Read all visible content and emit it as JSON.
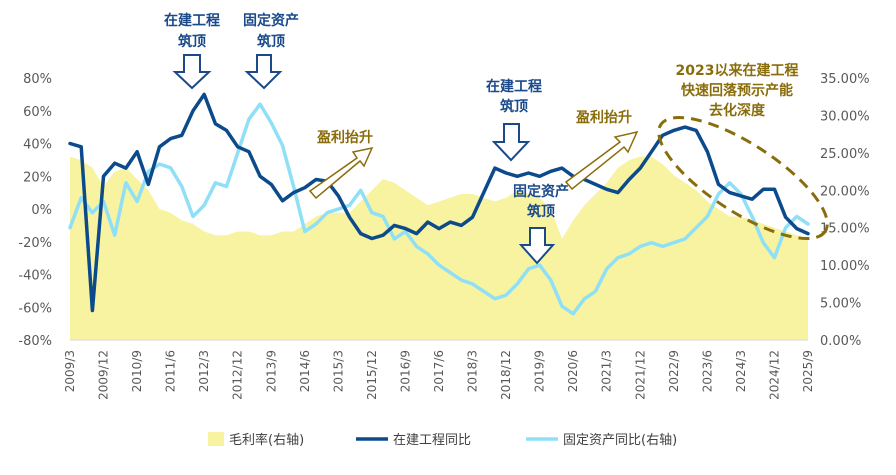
{
  "chart_data": {
    "type": "line",
    "title": "",
    "xlabel": "",
    "ylabel_left": "",
    "ylabel_right": "",
    "ylim_left": [
      -80,
      80
    ],
    "ylim_right": [
      0,
      35
    ],
    "x": [
      "2009/3",
      "2009/6",
      "2009/9",
      "2009/12",
      "2010/3",
      "2010/6",
      "2010/9",
      "2010/12",
      "2011/3",
      "2011/6",
      "2011/9",
      "2011/12",
      "2012/3",
      "2012/6",
      "2012/9",
      "2012/12",
      "2013/3",
      "2013/6",
      "2013/9",
      "2013/12",
      "2014/3",
      "2014/6",
      "2014/9",
      "2014/12",
      "2015/3",
      "2015/6",
      "2015/9",
      "2015/12",
      "2016/3",
      "2016/6",
      "2016/9",
      "2016/12",
      "2017/3",
      "2017/6",
      "2017/9",
      "2017/12",
      "2018/3",
      "2018/6",
      "2018/9",
      "2018/12",
      "2019/3",
      "2019/6",
      "2019/9",
      "2019/12",
      "2020/3",
      "2020/6",
      "2020/9",
      "2020/12",
      "2021/3",
      "2021/6",
      "2021/9",
      "2021/12",
      "2022/3",
      "2022/6",
      "2022/9",
      "2022/12",
      "2023/3",
      "2023/6",
      "2023/9",
      "2023/12",
      "2024/3",
      "2024/6",
      "2024/9",
      "2024/12",
      "2025/3",
      "2025/6",
      "2025/9"
    ],
    "x_tick_labels": [
      "2009/3",
      "2009/12",
      "2010/9",
      "2011/6",
      "2012/3",
      "2012/12",
      "2013/9",
      "2014/6",
      "2015/3",
      "2015/12",
      "2016/9",
      "2017/6",
      "2018/3",
      "2018/12",
      "2019/9",
      "2020/6",
      "2021/3",
      "2021/12",
      "2022/9",
      "2023/6",
      "2024/3",
      "2024/12",
      "2025/9"
    ],
    "left_ticks": [
      "80%",
      "60%",
      "40%",
      "20%",
      "0%",
      "-20%",
      "-40%",
      "-60%",
      "-80%"
    ],
    "right_ticks": [
      "35.00%",
      "30.00%",
      "25.00%",
      "20.00%",
      "15.00%",
      "10.00%",
      "5.00%",
      "0.00%"
    ],
    "series": [
      {
        "name": "毛利率(右轴)",
        "axis": "right",
        "kind": "area",
        "color": "#f7f3a0",
        "values": [
          24.5,
          24.0,
          23.0,
          20.5,
          22.5,
          23.0,
          21.5,
          20.0,
          17.5,
          17.0,
          16.0,
          15.5,
          14.5,
          14.0,
          14.0,
          14.5,
          14.5,
          14.0,
          14.0,
          14.5,
          14.5,
          15.5,
          16.5,
          17.0,
          17.0,
          17.0,
          18.5,
          20.0,
          21.5,
          21.0,
          20.0,
          19.0,
          18.0,
          18.5,
          19.0,
          19.5,
          19.5,
          19.0,
          18.5,
          19.0,
          20.0,
          19.5,
          19.0,
          17.5,
          13.5,
          16.0,
          18.0,
          19.5,
          21.0,
          23.0,
          24.0,
          24.5,
          24.5,
          23.5,
          22.0,
          21.0,
          20.0,
          18.5,
          17.5,
          16.5,
          16.5,
          16.0,
          15.5,
          15.0,
          14.5,
          14.0,
          13.5
        ]
      },
      {
        "name": "在建工程同比",
        "axis": "left",
        "kind": "line",
        "color": "#0b4a8b",
        "values": [
          40,
          38,
          -62,
          20,
          28,
          25,
          35,
          15,
          38,
          43,
          45,
          60,
          70,
          52,
          48,
          38,
          35,
          20,
          15,
          5,
          10,
          13,
          18,
          17,
          8,
          -5,
          -15,
          -18,
          -16,
          -10,
          -12,
          -15,
          -8,
          -12,
          -8,
          -10,
          -5,
          10,
          25,
          22,
          20,
          22,
          20,
          23,
          25,
          20,
          18,
          15,
          12,
          10,
          18,
          25,
          35,
          45,
          48,
          50,
          48,
          35,
          15,
          10,
          8,
          6,
          12,
          12,
          -5,
          -12,
          -15
        ]
      },
      {
        "name": "固定资产同比(右轴)",
        "axis": "right",
        "kind": "line",
        "color": "#8fe0f7",
        "values": [
          15.0,
          19.0,
          17.0,
          18.5,
          14.0,
          21.0,
          18.5,
          22.5,
          23.5,
          23.0,
          20.5,
          16.5,
          18.0,
          21.0,
          20.5,
          25.0,
          29.5,
          31.5,
          29.0,
          26.0,
          20.5,
          14.5,
          15.5,
          17.0,
          17.5,
          18.0,
          20.0,
          17.0,
          16.5,
          13.5,
          14.5,
          12.5,
          11.5,
          10.0,
          9.0,
          8.0,
          7.5,
          6.5,
          5.5,
          6.0,
          7.5,
          9.5,
          10.0,
          8.0,
          4.5,
          3.5,
          5.5,
          6.5,
          9.5,
          11.0,
          11.5,
          12.5,
          13.0,
          12.5,
          13.0,
          13.5,
          15.0,
          16.5,
          19.5,
          21.0,
          19.5,
          16.5,
          13.0,
          11.0,
          15.0,
          16.5,
          15.5
        ]
      }
    ],
    "annotations": {
      "peak1": "在建工程筑顶",
      "peak2": "固定资产筑顶",
      "profit1": "盈利抬升",
      "peak3": "在建工程筑顶",
      "peak4": "固定资产筑顶",
      "profit2": "盈利抬升",
      "note": "2023以来在建工程快速回落预示产能去化深度"
    },
    "annotation_lines": {
      "peak1": [
        "在建工程",
        "筑顶"
      ],
      "peak2": [
        "固定资产",
        "筑顶"
      ],
      "profit1": [
        "盈利抬升"
      ],
      "peak3": [
        "在建工程",
        "筑顶"
      ],
      "peak4": [
        "固定资产",
        "筑顶"
      ],
      "profit2": [
        "盈利抬升"
      ],
      "note": [
        "2023以来在建工程",
        "快速回落预示产能",
        "去化深度"
      ]
    },
    "legend": {
      "position": "bottom",
      "items": [
        "毛利率(右轴)",
        "在建工程同比",
        "固定资产同比(右轴)"
      ]
    }
  },
  "colors": {
    "area": "#f7f3a0",
    "line_dark": "#0b4a8b",
    "line_light": "#8fe0f7",
    "annotation_blue": "#1a4a8a",
    "annotation_gold": "#8a6d0b",
    "arrow_fill": "#ffffff"
  }
}
